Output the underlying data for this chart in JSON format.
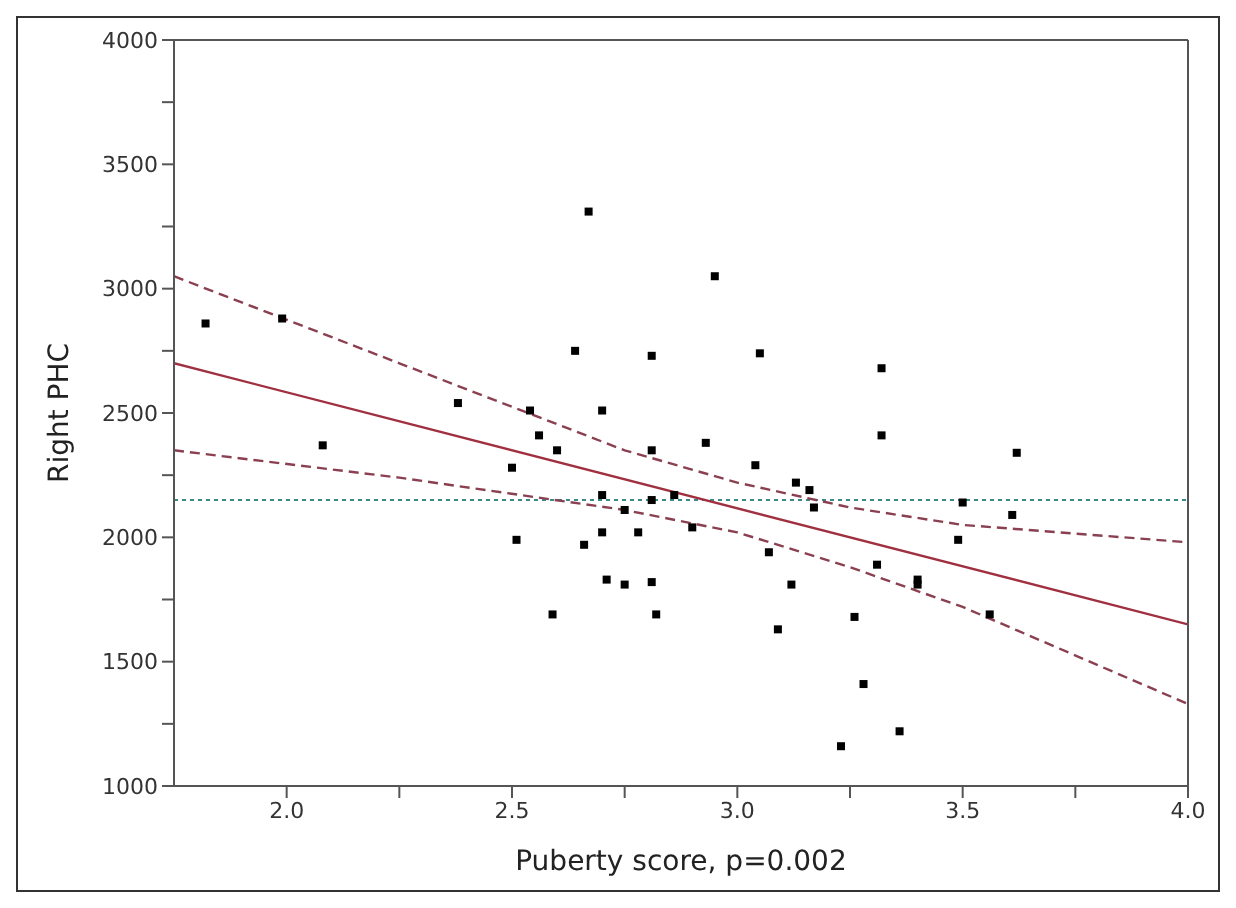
{
  "chart_data": {
    "type": "scatter",
    "xlabel": "Puberty score,  p=0.002",
    "ylabel": "Right PHC",
    "xlim": [
      1.75,
      4
    ],
    "xticks": [
      {
        "value": 2,
        "label": "2.0"
      },
      {
        "value": 2.25,
        "label": null
      },
      {
        "value": 2.5,
        "label": "2.5"
      },
      {
        "value": 2.75,
        "label": null
      },
      {
        "value": 3,
        "label": "3.0"
      },
      {
        "value": 3.25,
        "label": null
      },
      {
        "value": 3.5,
        "label": "3.5"
      },
      {
        "value": 3.75,
        "label": null
      },
      {
        "value": 4,
        "label": "4.0"
      }
    ],
    "ylim": [
      1000,
      4000
    ],
    "yticks": [
      1000,
      {
        "value": 1250,
        "label": null
      },
      1500,
      {
        "value": 1750,
        "label": null
      },
      2000,
      {
        "value": 2250,
        "label": null
      },
      2500,
      {
        "value": 2750,
        "label": null
      },
      3000,
      {
        "value": 3250,
        "label": null
      },
      3500,
      {
        "value": 3750,
        "label": null
      },
      4000
    ],
    "grid": false,
    "legend": false,
    "marker": "square",
    "series": [
      {
        "color": "#000000",
        "x": [
          1.82,
          1.99,
          2.08,
          2.38,
          2.5,
          2.51,
          2.54,
          2.56,
          2.6,
          2.59,
          2.64,
          2.66,
          2.67,
          2.7,
          2.7,
          2.7,
          2.71,
          2.75,
          2.75,
          2.78,
          2.81,
          2.81,
          2.81,
          2.81,
          2.82,
          2.86,
          2.9,
          2.93,
          2.95,
          3.05,
          3.04,
          3.07,
          3.09,
          3.12,
          3.13,
          3.16,
          3.17,
          3.23,
          3.26,
          3.28,
          3.31,
          3.32,
          3.32,
          3.36,
          3.4,
          3.4,
          3.49,
          3.5,
          3.56,
          3.61,
          3.62
        ],
        "values": [
          2860,
          2880,
          2370,
          2540,
          2280,
          1990,
          2510,
          2410,
          2350,
          1690,
          2750,
          1970,
          3310,
          2510,
          2170,
          2020,
          1830,
          2110,
          1810,
          2020,
          2730,
          2350,
          2150,
          1820,
          1690,
          2170,
          2040,
          2380,
          3050,
          2740,
          2290,
          1940,
          1630,
          1810,
          2220,
          2190,
          2120,
          1160,
          1680,
          1410,
          1890,
          2680,
          2410,
          1220,
          1830,
          1810,
          1990,
          2140,
          1690,
          2090,
          2340
        ]
      },
      {
        "type": "line",
        "color": "#a03040",
        "marker": "none",
        "line_style": "solid",
        "x": [
          1.75,
          4
        ],
        "values": [
          2700,
          1650
        ]
      },
      {
        "type": "line",
        "color": "#8a4050",
        "marker": "none",
        "line_style": "dashed",
        "x": [
          1.75,
          2.25,
          2.75,
          3.0,
          3.25,
          3.5,
          4.0
        ],
        "values": [
          3050,
          2700,
          2350,
          2220,
          2120,
          2050,
          1980
        ]
      },
      {
        "type": "line",
        "color": "#8a4050",
        "marker": "none",
        "line_style": "dashed",
        "x": [
          1.75,
          2.25,
          2.75,
          3.0,
          3.25,
          3.5,
          4.0
        ],
        "values": [
          2350,
          2240,
          2110,
          2020,
          1880,
          1720,
          1330
        ]
      }
    ],
    "ref_lines": [
      {
        "axis": "y",
        "value": 2150,
        "color": "#3a8a8a",
        "line_style": "dotted"
      }
    ]
  }
}
